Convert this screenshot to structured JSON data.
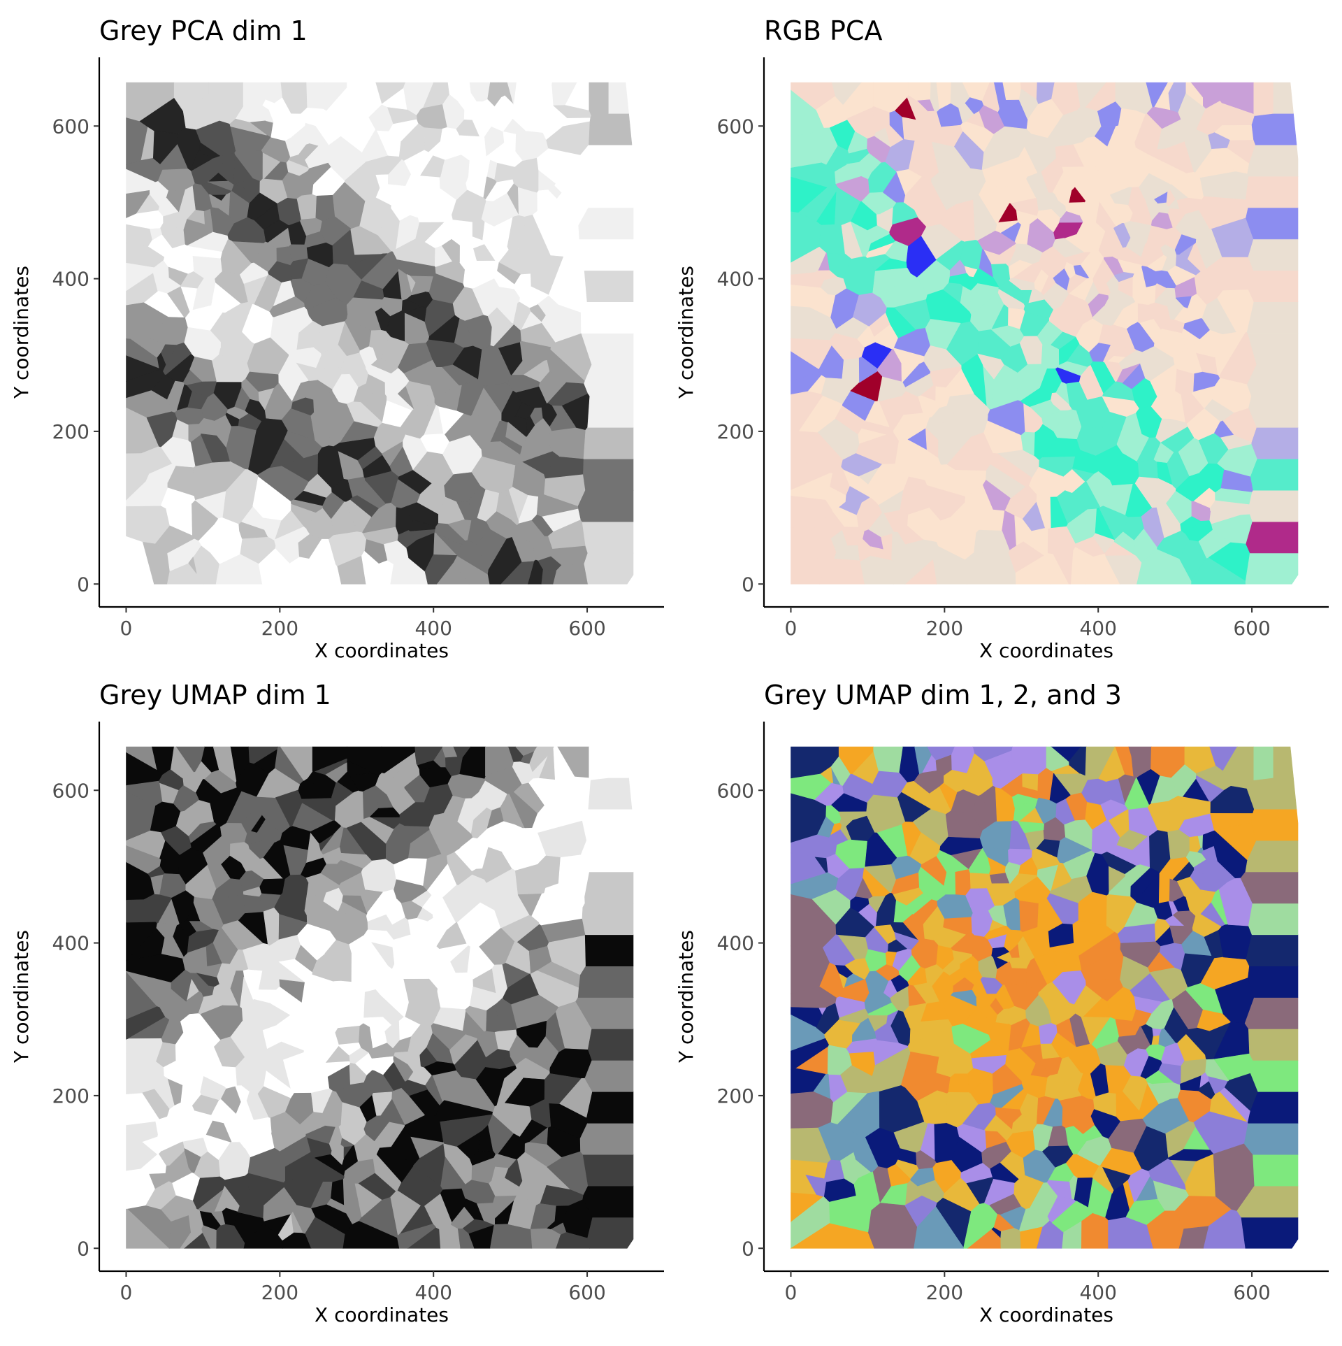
{
  "chart_data": [
    {
      "type": "heatmap",
      "subtype": "voronoi tessellation",
      "title": "Grey PCA dim 1",
      "xlabel": "X coordinates",
      "ylabel": "Y coordinates",
      "xlim": [
        -35,
        700
      ],
      "ylim": [
        -30,
        690
      ],
      "xticks": [
        0,
        200,
        400,
        600
      ],
      "yticks": [
        0,
        200,
        400,
        600
      ],
      "fill_extent": [
        0,
        660,
        0,
        657
      ],
      "color_mode": "grey",
      "palette": [
        "#ffffff",
        "#f0f0f0",
        "#d9d9d9",
        "#bdbdbd",
        "#969696",
        "#737373",
        "#525252",
        "#252525"
      ],
      "structure": "diagonal dark band from upper-left to lower-right with light regions between",
      "grid": false,
      "legend": "none"
    },
    {
      "type": "heatmap",
      "subtype": "voronoi tessellation",
      "title": "RGB PCA",
      "xlabel": "X coordinates",
      "ylabel": "Y coordinates",
      "xlim": [
        -35,
        700
      ],
      "ylim": [
        -30,
        690
      ],
      "xticks": [
        0,
        200,
        400,
        600
      ],
      "yticks": [
        0,
        200,
        400,
        600
      ],
      "fill_extent": [
        0,
        660,
        0,
        657
      ],
      "color_mode": "rgb",
      "palette": [
        "#fbe3cf",
        "#f6d9cc",
        "#eadfd2",
        "#9ff0d2",
        "#55eccb",
        "#2ef2c8",
        "#b4aee6",
        "#8c8df0",
        "#c9a0d8",
        "#2a2ff5",
        "#a0002a",
        "#b02a8a"
      ],
      "structure": "peach background with turquoise band and scattered lavender cells",
      "grid": false,
      "legend": "none"
    },
    {
      "type": "heatmap",
      "subtype": "voronoi tessellation",
      "title": "Grey UMAP dim 1",
      "xlabel": "X coordinates",
      "ylabel": "Y coordinates",
      "xlim": [
        -35,
        700
      ],
      "ylim": [
        -30,
        690
      ],
      "xticks": [
        0,
        200,
        400,
        600
      ],
      "yticks": [
        0,
        200,
        400,
        600
      ],
      "fill_extent": [
        0,
        660,
        0,
        657
      ],
      "color_mode": "grey",
      "palette": [
        "#ffffff",
        "#e6e6e6",
        "#c8c8c8",
        "#a8a8a8",
        "#8a8a8a",
        "#666666",
        "#404040",
        "#0a0a0a"
      ],
      "structure": "dark lower-left and upper-right, light diagonal band through center",
      "grid": false,
      "legend": "none"
    },
    {
      "type": "heatmap",
      "subtype": "voronoi tessellation",
      "title": "Grey UMAP dim 1, 2, and 3",
      "xlabel": "X coordinates",
      "ylabel": "Y coordinates",
      "xlim": [
        -35,
        700
      ],
      "ylim": [
        -30,
        690
      ],
      "xticks": [
        0,
        200,
        400,
        600
      ],
      "yticks": [
        0,
        200,
        400,
        600
      ],
      "fill_extent": [
        0,
        660,
        0,
        657
      ],
      "color_mode": "rgb",
      "palette": [
        "#f08a30",
        "#f5a623",
        "#e8b83a",
        "#7ee87e",
        "#9fdca0",
        "#0a1a7a",
        "#14286e",
        "#8c7ed8",
        "#a98ee8",
        "#b8b870",
        "#8a6a7a",
        "#6a9ab8"
      ],
      "structure": "orange/amber core surrounded by green, navy and violet cells",
      "grid": false,
      "legend": "none"
    }
  ]
}
